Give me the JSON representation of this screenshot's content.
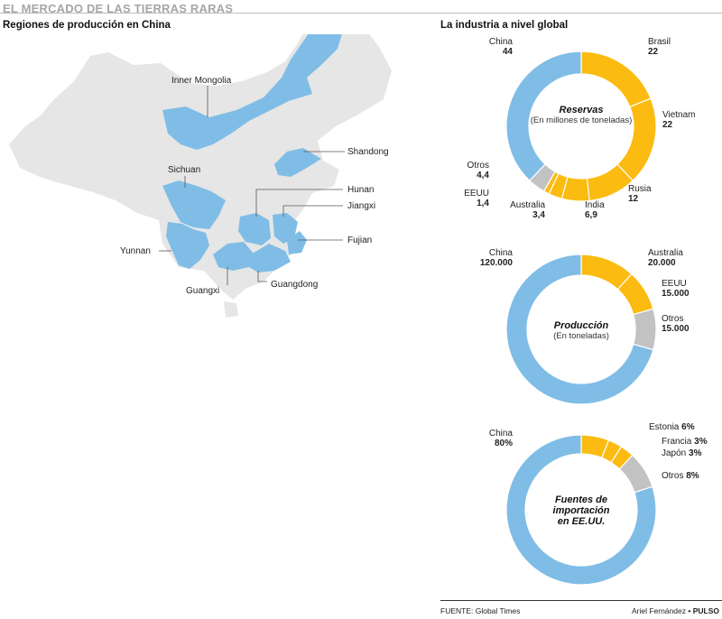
{
  "header": {
    "title": "EL MERCADO DE LAS TIERRAS RARAS",
    "map_subtitle": "Regiones de producción en China",
    "charts_subtitle": "La industria a nivel global"
  },
  "map": {
    "regions": [
      {
        "name": "Inner Mongolia"
      },
      {
        "name": "Shandong"
      },
      {
        "name": "Sichuan"
      },
      {
        "name": "Hunan"
      },
      {
        "name": "Jiangxi"
      },
      {
        "name": "Fujian"
      },
      {
        "name": "Yunnan"
      },
      {
        "name": "Guangxi"
      },
      {
        "name": "Guangdong"
      }
    ]
  },
  "colors": {
    "china": "#7fbde6",
    "other": "#fbbb10",
    "otros": "#c2c2c2",
    "land": "#e6e6e6"
  },
  "chart_data": [
    {
      "type": "pie",
      "title": "Reservas",
      "subtitle": "(En millones de toneladas)",
      "categories": [
        "China",
        "Brasil",
        "Vietnam",
        "Rusia",
        "India",
        "Australia",
        "EEUU",
        "Otros"
      ],
      "values": [
        44,
        22,
        22,
        12,
        6.9,
        3.4,
        1.4,
        4.4
      ],
      "value_labels": [
        "44",
        "22",
        "22",
        "12",
        "6,9",
        "3,4",
        "1,4",
        "4,4"
      ]
    },
    {
      "type": "pie",
      "title": "Producción",
      "subtitle": "(En toneladas)",
      "categories": [
        "China",
        "Australia",
        "EEUU",
        "Otros"
      ],
      "values": [
        120000,
        20000,
        15000,
        15000
      ],
      "value_labels": [
        "120.000",
        "20.000",
        "15.000",
        "15.000"
      ]
    },
    {
      "type": "pie",
      "title": "Fuentes de importación en EE.UU.",
      "title_lines": [
        "Fuentes de",
        "importación",
        "en EE.UU."
      ],
      "subtitle": "",
      "categories": [
        "China",
        "Estonia",
        "Francia",
        "Japón",
        "Otros"
      ],
      "values": [
        80,
        6,
        3,
        3,
        8
      ],
      "value_labels": [
        "80%",
        "6%",
        "3%",
        "3%",
        "8%"
      ]
    }
  ],
  "footer": {
    "source": "FUENTE: Global Times",
    "author": "Ariel Fernández",
    "brand": "PULSO"
  }
}
